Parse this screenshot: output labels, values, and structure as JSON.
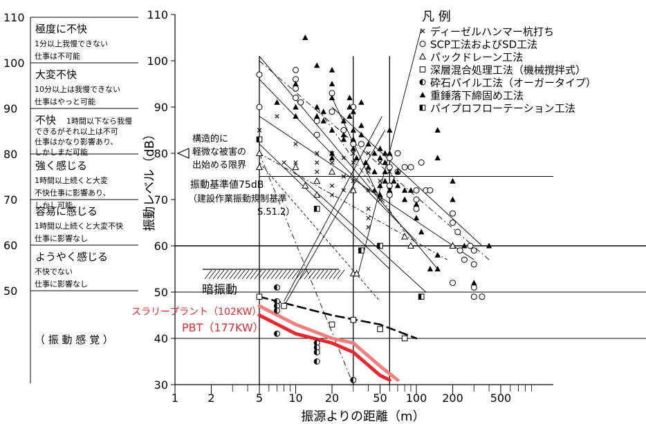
{
  "chart_data": {
    "type": "scatter",
    "title": "",
    "xlabel": "振源よりの距離（m）",
    "ylabel": "振動レベル（dB）",
    "x_scale": "log",
    "xlim": [
      1,
      1000
    ],
    "ylim": [
      30,
      110
    ],
    "x_ticks": [
      1,
      2,
      5,
      10,
      20,
      50,
      100,
      200,
      500
    ],
    "x_tick_labels": [
      "1",
      "2",
      "5",
      "10",
      "20",
      "50",
      "100",
      "200",
      "500"
    ],
    "y_ticks": [
      30,
      40,
      50,
      60,
      70,
      80,
      90,
      100,
      110
    ],
    "y_tick_labels": [
      "30",
      "40",
      "50",
      "60",
      "70",
      "80",
      "90",
      "100",
      "110"
    ],
    "left_scale_ticks": [
      "110",
      "100",
      "90",
      "80",
      "70",
      "60",
      "50"
    ],
    "left_scale_title": "（ 振 動 感 覚 ）",
    "sensation_bands": [
      {
        "from": 110,
        "to": 100,
        "title": "極度に不快",
        "lines": [
          "1分以上我慢できない",
          "仕事は不可能"
        ]
      },
      {
        "from": 100,
        "to": 90,
        "title": "大変不快",
        "lines": [
          "10分以上は我慢できない",
          "仕事はやっと可能"
        ]
      },
      {
        "from": 90,
        "to": 80,
        "title": "不快",
        "lines": [
          "1時間以下なら我慢",
          "できるがそれ以上は不可",
          "仕事はかなり影響あり、",
          "しかしまだ可能"
        ]
      },
      {
        "from": 80,
        "to": 70,
        "title": "強く感じる",
        "lines": [
          "1時間以上続くと大変",
          "不快仕事に影響あり、",
          "しかし可能"
        ]
      },
      {
        "from": 70,
        "to": 60,
        "title": "容易に感じる",
        "lines": [
          "1時間以上続くと大変不快",
          "仕事に影響なし"
        ]
      },
      {
        "from": 60,
        "to": 50,
        "title": "ようやく感じる",
        "lines": [
          "不快でない",
          "仕事に影響なし"
        ]
      }
    ],
    "legend": {
      "title": "凡 例",
      "placement": "top-right",
      "items": [
        {
          "marker": "×",
          "label": "ディーゼルハンマー杭打ち"
        },
        {
          "marker": "○",
          "label": "SCP工法およびSD工法"
        },
        {
          "marker": "△",
          "label": "パックドレーン工法"
        },
        {
          "marker": "□",
          "label": "深層混合処理工法（機械撹拌式）"
        },
        {
          "marker": "◐",
          "label": "砕石パイル工法（オーガータイプ）"
        },
        {
          "marker": "▲",
          "label": "重錘落下締固め工法"
        },
        {
          "marker": "◧",
          "label": "パイプロフローテーション工法"
        }
      ]
    },
    "annotations": {
      "damage_limit": [
        "構造的に",
        "軽微な被害の",
        "出始める限界"
      ],
      "standard": [
        "振動基準値75dB",
        "（建設作業振動規制基準",
        "S.51.2）"
      ],
      "dark_vibration": "暗振動",
      "slurry_plant": "スラリープラント（102KW）",
      "pbt": "PBT（177KW）"
    },
    "reference_lines": {
      "horizontal_y": [
        75,
        60,
        50,
        40
      ],
      "vertical_x": [
        5,
        30,
        60
      ]
    },
    "series": [
      {
        "name": "ディーゼルハンマー杭打ち",
        "marker": "x",
        "points": [
          [
            5,
            85
          ],
          [
            5,
            83
          ],
          [
            7,
            88
          ],
          [
            8,
            78
          ],
          [
            10,
            82
          ],
          [
            10,
            78
          ],
          [
            15,
            80
          ],
          [
            15,
            78
          ],
          [
            15,
            76
          ],
          [
            20,
            80
          ],
          [
            20,
            78
          ],
          [
            20,
            73
          ],
          [
            20,
            71
          ],
          [
            25,
            79
          ],
          [
            25,
            75
          ],
          [
            25,
            72
          ],
          [
            30,
            80
          ],
          [
            30,
            78
          ],
          [
            30,
            74
          ],
          [
            30,
            72
          ],
          [
            40,
            80
          ],
          [
            40,
            76
          ],
          [
            40,
            72
          ],
          [
            40,
            68
          ],
          [
            40,
            66
          ],
          [
            40,
            64
          ],
          [
            50,
            78
          ],
          [
            50,
            74
          ],
          [
            50,
            70
          ],
          [
            60,
            76
          ],
          [
            60,
            72
          ]
        ]
      },
      {
        "name": "SCP工法およびSD工法",
        "marker": "circle",
        "points": [
          [
            5,
            97
          ],
          [
            5,
            90
          ],
          [
            10,
            98
          ],
          [
            10,
            96
          ],
          [
            10,
            94
          ],
          [
            10,
            92
          ],
          [
            11,
            91
          ],
          [
            15,
            87
          ],
          [
            15,
            84
          ],
          [
            20,
            93
          ],
          [
            20,
            89
          ],
          [
            25,
            85
          ],
          [
            30,
            90
          ],
          [
            30,
            82
          ],
          [
            35,
            82
          ],
          [
            60,
            79
          ],
          [
            60,
            77
          ],
          [
            60,
            73
          ],
          [
            60,
            71
          ],
          [
            70,
            80
          ],
          [
            70,
            76
          ],
          [
            80,
            77
          ],
          [
            90,
            77
          ],
          [
            100,
            72
          ],
          [
            100,
            70
          ],
          [
            100,
            68
          ],
          [
            110,
            78
          ],
          [
            120,
            72
          ],
          [
            130,
            72
          ],
          [
            200,
            67
          ],
          [
            200,
            65
          ],
          [
            220,
            63
          ],
          [
            230,
            59
          ],
          [
            250,
            57
          ],
          [
            280,
            60
          ],
          [
            300,
            56
          ],
          [
            300,
            59
          ],
          [
            200,
            52
          ],
          [
            300,
            51
          ],
          [
            300,
            49
          ],
          [
            350,
            49
          ]
        ]
      },
      {
        "name": "パックドレーン工法",
        "marker": "triangle",
        "points": [
          [
            5,
            80
          ],
          [
            5,
            77
          ],
          [
            10,
            77
          ],
          [
            12,
            73
          ],
          [
            15,
            74
          ],
          [
            15,
            71
          ],
          [
            20,
            76
          ],
          [
            30,
            72
          ],
          [
            30,
            54
          ],
          [
            32,
            54
          ],
          [
            80,
            62
          ],
          [
            90,
            60
          ],
          [
            200,
            60
          ]
        ]
      },
      {
        "name": "深層混合処理工法（機械撹拌式）",
        "marker": "square",
        "points": [
          [
            5,
            49
          ],
          [
            8,
            47
          ],
          [
            20,
            43
          ],
          [
            30,
            44
          ],
          [
            50,
            42
          ],
          [
            80,
            40
          ],
          [
            110,
            49
          ]
        ]
      },
      {
        "name": "砕石パイル工法（オーガータイプ）",
        "marker": "half-circle",
        "points": [
          [
            7,
            51
          ],
          [
            7,
            48
          ],
          [
            7,
            47
          ],
          [
            7,
            46
          ],
          [
            7,
            41
          ],
          [
            15,
            39
          ],
          [
            15,
            38
          ],
          [
            15,
            37
          ],
          [
            15,
            35
          ],
          [
            30,
            31
          ]
        ]
      },
      {
        "name": "重錘落下締固め工法",
        "marker": "triangle-filled",
        "points": [
          [
            7,
            91
          ],
          [
            10,
            95
          ],
          [
            10,
            90
          ],
          [
            10,
            88
          ],
          [
            12,
            105
          ],
          [
            15,
            99
          ],
          [
            15,
            90
          ],
          [
            15,
            88
          ],
          [
            17,
            89
          ],
          [
            17,
            87
          ],
          [
            20,
            98
          ],
          [
            20,
            95
          ],
          [
            20,
            92
          ],
          [
            20,
            85
          ],
          [
            20,
            80
          ],
          [
            20,
            79
          ],
          [
            25,
            87
          ],
          [
            25,
            84
          ],
          [
            25,
            83
          ],
          [
            28,
            92
          ],
          [
            28,
            90
          ],
          [
            28,
            88
          ],
          [
            30,
            89
          ],
          [
            30,
            85
          ],
          [
            30,
            83
          ],
          [
            30,
            81
          ],
          [
            32,
            79
          ],
          [
            35,
            91
          ],
          [
            35,
            86
          ],
          [
            35,
            84
          ],
          [
            38,
            78
          ],
          [
            40,
            82
          ],
          [
            40,
            77
          ],
          [
            45,
            80
          ],
          [
            45,
            76
          ],
          [
            45,
            72
          ],
          [
            50,
            81
          ],
          [
            50,
            79
          ],
          [
            50,
            73
          ],
          [
            50,
            71
          ],
          [
            55,
            80
          ],
          [
            55,
            78
          ],
          [
            55,
            76
          ],
          [
            55,
            74
          ],
          [
            60,
            85
          ],
          [
            60,
            80
          ],
          [
            60,
            72
          ],
          [
            65,
            74
          ],
          [
            70,
            76
          ],
          [
            70,
            73
          ],
          [
            80,
            72
          ],
          [
            80,
            70
          ],
          [
            90,
            72
          ],
          [
            100,
            69
          ],
          [
            100,
            66
          ],
          [
            110,
            63
          ],
          [
            130,
            55
          ],
          [
            150,
            85
          ],
          [
            150,
            79
          ],
          [
            150,
            58
          ],
          [
            150,
            55
          ],
          [
            200,
            74
          ],
          [
            200,
            70
          ],
          [
            250,
            60
          ],
          [
            300,
            52
          ],
          [
            400,
            60
          ]
        ]
      },
      {
        "name": "パイプロフローテーション工法",
        "marker": "half-square",
        "points": [
          [
            5,
            83
          ],
          [
            15,
            68
          ],
          [
            35,
            59
          ],
          [
            50,
            60
          ],
          [
            110,
            49
          ]
        ]
      }
    ],
    "lines": [
      {
        "name": "スラリープラント（102KW）",
        "color": "#f0807f",
        "points": [
          [
            5,
            47
          ],
          [
            10,
            43
          ],
          [
            20,
            40
          ],
          [
            30,
            39
          ],
          [
            50,
            34
          ],
          [
            70,
            31
          ]
        ]
      },
      {
        "name": "PBT（177KW）",
        "color": "#e8282f",
        "points": [
          [
            5,
            45
          ],
          [
            10,
            41
          ],
          [
            20,
            39
          ],
          [
            30,
            37
          ],
          [
            50,
            32
          ],
          [
            60,
            31
          ]
        ]
      },
      {
        "name": "",
        "color": "#000000",
        "style": "dashed",
        "points": [
          [
            5,
            49
          ],
          [
            20,
            45
          ],
          [
            50,
            43
          ],
          [
            100,
            40
          ]
        ]
      }
    ]
  }
}
